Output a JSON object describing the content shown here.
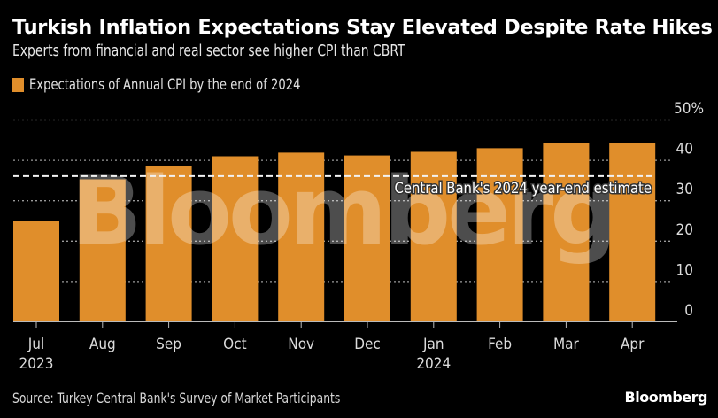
{
  "header": {
    "title": "Turkish Inflation Expectations Stay Elevated Despite Rate Hikes",
    "subtitle": "Experts from financial and real sector see higher CPI than CBRT"
  },
  "legend": {
    "label": "Expectations of Annual CPI by the end of 2024",
    "color": "#e08e2b"
  },
  "footer": {
    "source": "Source: Turkey Central Bank's Survey of Market Participants",
    "brand": "Bloomberg"
  },
  "watermark": "Bloomberg",
  "chart_data": {
    "type": "bar",
    "title": "Turkish Inflation Expectations Stay Elevated Despite Rate Hikes",
    "subtitle": "Experts from financial and real sector see higher CPI than CBRT",
    "categories": [
      "Jul",
      "Aug",
      "Sep",
      "Oct",
      "Nov",
      "Dec",
      "Jan",
      "Feb",
      "Mar",
      "Apr"
    ],
    "category_sublabels": [
      "2023",
      "",
      "",
      "",
      "",
      "",
      "2024",
      "",
      "",
      ""
    ],
    "series": [
      {
        "name": "Expectations of Annual CPI by the end of 2024",
        "color": "#e08e2b",
        "values": [
          25.0,
          35.2,
          38.5,
          40.9,
          41.8,
          41.1,
          42.0,
          42.9,
          44.2,
          44.2
        ]
      }
    ],
    "reference_line": {
      "label": "Central Bank's 2024 year-end estimate",
      "value": 36,
      "style": "dashed"
    },
    "xlabel": "",
    "ylabel": "",
    "ylim": [
      0,
      50
    ],
    "yticks": [
      0,
      10,
      20,
      30,
      40,
      50
    ],
    "ytick_labels": [
      "0",
      "10",
      "20",
      "30",
      "40",
      "50%"
    ],
    "y_axis_side": "right",
    "grid": true,
    "legend_position": "top-left"
  }
}
